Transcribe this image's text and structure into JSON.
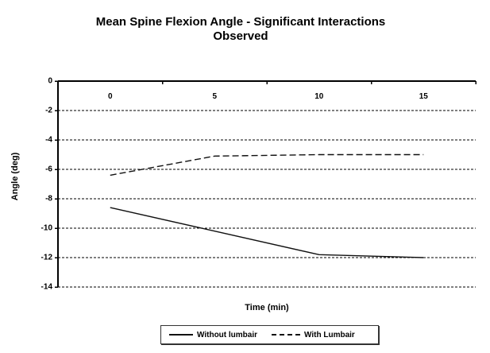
{
  "chart_data": {
    "type": "line",
    "title": "Mean Spine Flexion Angle - Significant Interactions\nObserved",
    "categories": [
      "0",
      "5",
      "10",
      "15"
    ],
    "series": [
      {
        "name": "Without lumbair",
        "style": "solid",
        "values": [
          -8.6,
          -10.2,
          -11.8,
          -12.0
        ]
      },
      {
        "name": "With Lumbair",
        "style": "dashed",
        "values": [
          -6.4,
          -5.1,
          -5.0,
          -5.0
        ]
      }
    ],
    "xlabel": "Time (min)",
    "ylabel": "Angle (deg)",
    "ylim": [
      -14,
      0
    ],
    "y_ticks": [
      0,
      -2,
      -4,
      -6,
      -8,
      -10,
      -12,
      -14
    ],
    "grid": "horizontal-dashed",
    "legend_position": "bottom",
    "colors": {
      "line": "#000000",
      "background": "#ffffff",
      "text": "#000000"
    }
  }
}
